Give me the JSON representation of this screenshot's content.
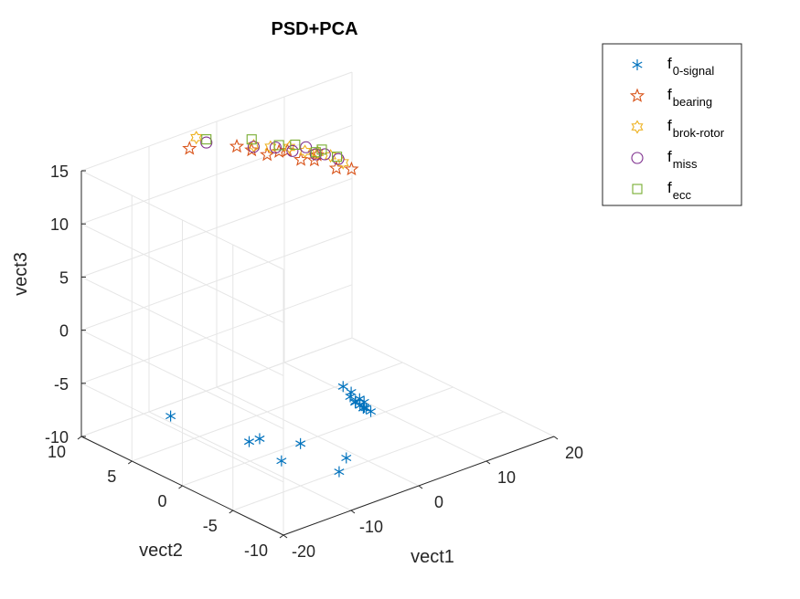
{
  "chart_data": {
    "type": "scatter",
    "title": "PSD+PCA",
    "xlabel": "vect1",
    "ylabel": "vect2",
    "zlabel": "vect3",
    "xlim": [
      -20,
      20
    ],
    "ylim": [
      -10,
      10
    ],
    "zlim": [
      -10,
      15
    ],
    "x_ticks": [
      "-20",
      "-10",
      "0",
      "10",
      "20"
    ],
    "y_ticks": [
      "-10",
      "-5",
      "0",
      "5",
      "10"
    ],
    "z_ticks": [
      "-10",
      "-5",
      "0",
      "5",
      "10",
      "15"
    ],
    "grid": true,
    "legend_placement": "top-right",
    "series": [
      {
        "name": "f_{0-signal}",
        "label_main": "f",
        "label_sub": "0-signal",
        "marker": "asterisk",
        "color": "#0072BD",
        "points": [
          [
            -8.9,
            8.6,
            -10.0
          ],
          [
            -6.7,
            2.3,
            -10.0
          ],
          [
            -5.3,
            2.2,
            -10.0
          ],
          [
            -2.7,
            -0.1,
            -10.0
          ],
          [
            -7.3,
            -1.3,
            -10.0
          ],
          [
            -1.3,
            -3.7,
            -10.0
          ],
          [
            -4.3,
            -5.0,
            -10.0
          ],
          [
            -7.0,
            -8.0,
            -0.5
          ],
          [
            -6.7,
            -7.0,
            -0.5
          ],
          [
            -6.5,
            -8.5,
            -1.0
          ],
          [
            -6.4,
            -7.5,
            -1.3
          ],
          [
            -6.2,
            -7.9,
            -1.6
          ],
          [
            -6.0,
            -8.2,
            -1.9
          ],
          [
            -5.8,
            -8.4,
            -2.1
          ],
          [
            -5.5,
            -7.4,
            -2.1
          ],
          [
            -5.2,
            -8.1,
            -2.3
          ],
          [
            -5.0,
            -8.6,
            -2.5
          ],
          [
            -4.8,
            -8.0,
            -2.5
          ],
          [
            -4.5,
            -7.6,
            -2.2
          ]
        ]
      },
      {
        "name": "f_{bearing}",
        "label_main": "f",
        "label_sub": "bearing",
        "marker": "star",
        "color": "#D95319",
        "points": [
          [
            -7.0,
            8.0,
            15.0
          ],
          [
            -3.0,
            6.0,
            15.2
          ],
          [
            -2.0,
            5.2,
            15.0
          ],
          [
            -1.5,
            4.0,
            15.0
          ],
          [
            -0.5,
            3.5,
            15.3
          ],
          [
            0.0,
            3.0,
            15.5
          ],
          [
            0.5,
            2.0,
            15.0
          ],
          [
            1.0,
            1.0,
            15.3
          ],
          [
            1.4,
            1.0,
            15.7
          ],
          [
            2.0,
            -0.5,
            15.0
          ],
          [
            3.5,
            -1.0,
            14.8
          ]
        ]
      },
      {
        "name": "f_{brok-rotor}",
        "label_main": "f",
        "label_sub": "brok-rotor",
        "marker": "hexagram",
        "color": "#EDB120",
        "points": [
          [
            -6.0,
            8.0,
            15.8
          ],
          [
            -2.0,
            5.0,
            15.5
          ],
          [
            -1.0,
            4.0,
            15.6
          ],
          [
            0.0,
            2.8,
            15.9
          ],
          [
            0.8,
            1.8,
            15.8
          ],
          [
            1.5,
            1.0,
            15.9
          ],
          [
            2.2,
            0.2,
            15.8
          ],
          [
            3.0,
            -0.5,
            15.3
          ]
        ]
      },
      {
        "name": "f_{miss}",
        "label_main": "f",
        "label_sub": "miss",
        "marker": "circle",
        "color": "#7E2F8E",
        "points": [
          [
            -6.0,
            7.0,
            15.8
          ],
          [
            -2.0,
            5.0,
            15.4
          ],
          [
            -1.0,
            3.5,
            15.8
          ],
          [
            0.0,
            2.5,
            15.7
          ],
          [
            0.5,
            1.5,
            16.4
          ],
          [
            1.2,
            1.0,
            15.8
          ],
          [
            1.8,
            0.5,
            15.9
          ],
          [
            2.3,
            -0.5,
            15.8
          ]
        ]
      },
      {
        "name": "f_{ecc}",
        "label_main": "f",
        "label_sub": "ecc",
        "marker": "square",
        "color": "#77AC30",
        "points": [
          [
            -6.0,
            7.0,
            16.1
          ],
          [
            -2.0,
            5.2,
            16.0
          ],
          [
            -0.5,
            3.5,
            15.9
          ],
          [
            0.4,
            2.5,
            16.2
          ],
          [
            1.2,
            1.0,
            16.0
          ],
          [
            1.8,
            0.8,
            16.2
          ],
          [
            2.4,
            -0.3,
            15.9
          ]
        ]
      }
    ]
  },
  "colors": {
    "axis": "#262626",
    "grid": "#e6e6e6",
    "legend_border": "#262626"
  }
}
